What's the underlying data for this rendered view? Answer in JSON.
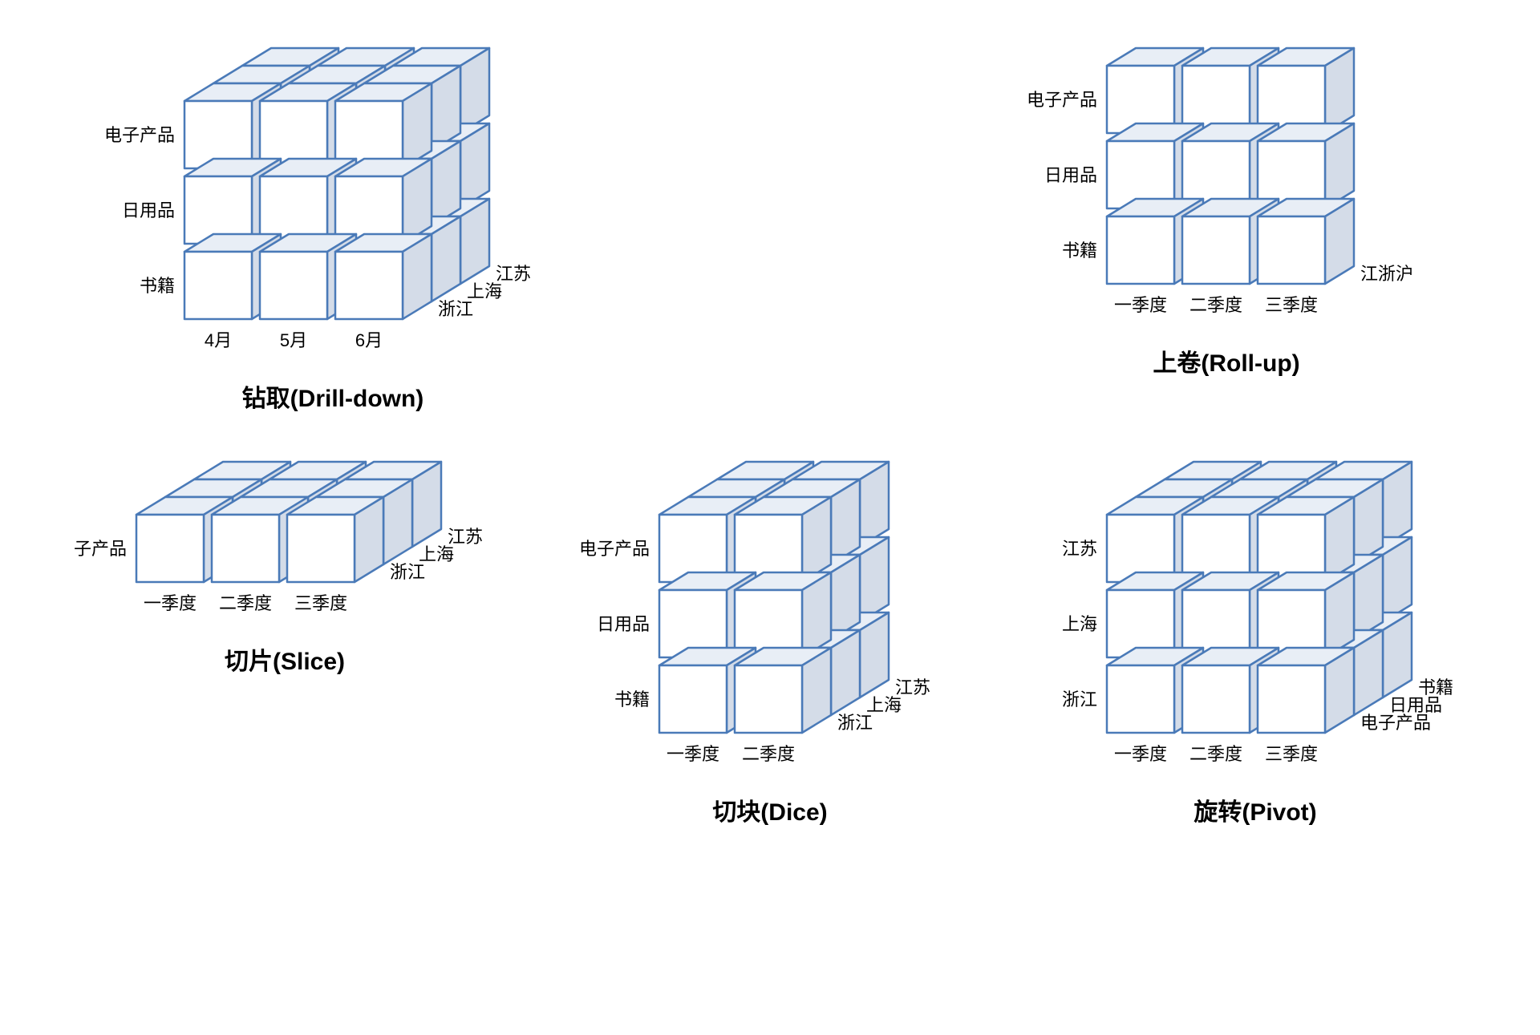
{
  "colors": {
    "front_stroke": "#4a7ab8",
    "front_fill": "#ffffff",
    "top_fill": "#e8eef6",
    "side_fill": "#d4dce8",
    "ghost_stroke": "#b8c8dd",
    "ghost_fill_front": "#fafbfd",
    "ghost_fill_top": "#f2f5fa",
    "ghost_fill_side": "#eaeef5",
    "background": "#ffffff",
    "text": "#000000"
  },
  "geometry": {
    "cell_size": 84,
    "gap": 10,
    "iso_dx": 36,
    "iso_dy": 22,
    "stroke_width": 2.5,
    "ghost_stroke_width": 1.2,
    "label_fontsize": 22,
    "title_fontsize": 30
  },
  "panels": {
    "drilldown": {
      "title": "钻取(Drill-down)",
      "rows": 3,
      "cols": 3,
      "depth": 3,
      "row_labels": [
        "书籍",
        "日用品",
        "电子产品"
      ],
      "col_labels": [
        "4月",
        "5月",
        "6月"
      ],
      "depth_labels": [
        "浙江",
        "上海",
        "江苏"
      ],
      "ghost_inner": true
    },
    "rollup": {
      "title": "上卷(Roll-up)",
      "rows": 3,
      "cols": 3,
      "depth": 1,
      "row_labels": [
        "书籍",
        "日用品",
        "电子产品"
      ],
      "col_labels": [
        "一季度",
        "二季度",
        "三季度"
      ],
      "depth_labels": [
        "江浙沪"
      ],
      "ghost_inner": false
    },
    "slice": {
      "title": "切片(Slice)",
      "rows": 1,
      "cols": 3,
      "depth": 3,
      "row_labels": [
        "子产品"
      ],
      "col_labels": [
        "一季度",
        "二季度",
        "三季度"
      ],
      "depth_labels": [
        "浙江",
        "上海",
        "江苏"
      ],
      "ghost_inner": false
    },
    "dice": {
      "title": "切块(Dice)",
      "rows": 3,
      "cols": 2,
      "depth": 3,
      "row_labels": [
        "书籍",
        "日用品",
        "电子产品"
      ],
      "col_labels": [
        "一季度",
        "二季度"
      ],
      "depth_labels": [
        "浙江",
        "上海",
        "江苏"
      ],
      "ghost_inner": true
    },
    "pivot": {
      "title": "旋转(Pivot)",
      "rows": 3,
      "cols": 3,
      "depth": 3,
      "row_labels": [
        "浙江",
        "上海",
        "江苏"
      ],
      "col_labels": [
        "一季度",
        "二季度",
        "三季度"
      ],
      "depth_labels": [
        "电子产品",
        "日用品",
        "书籍"
      ],
      "ghost_inner": true
    }
  }
}
